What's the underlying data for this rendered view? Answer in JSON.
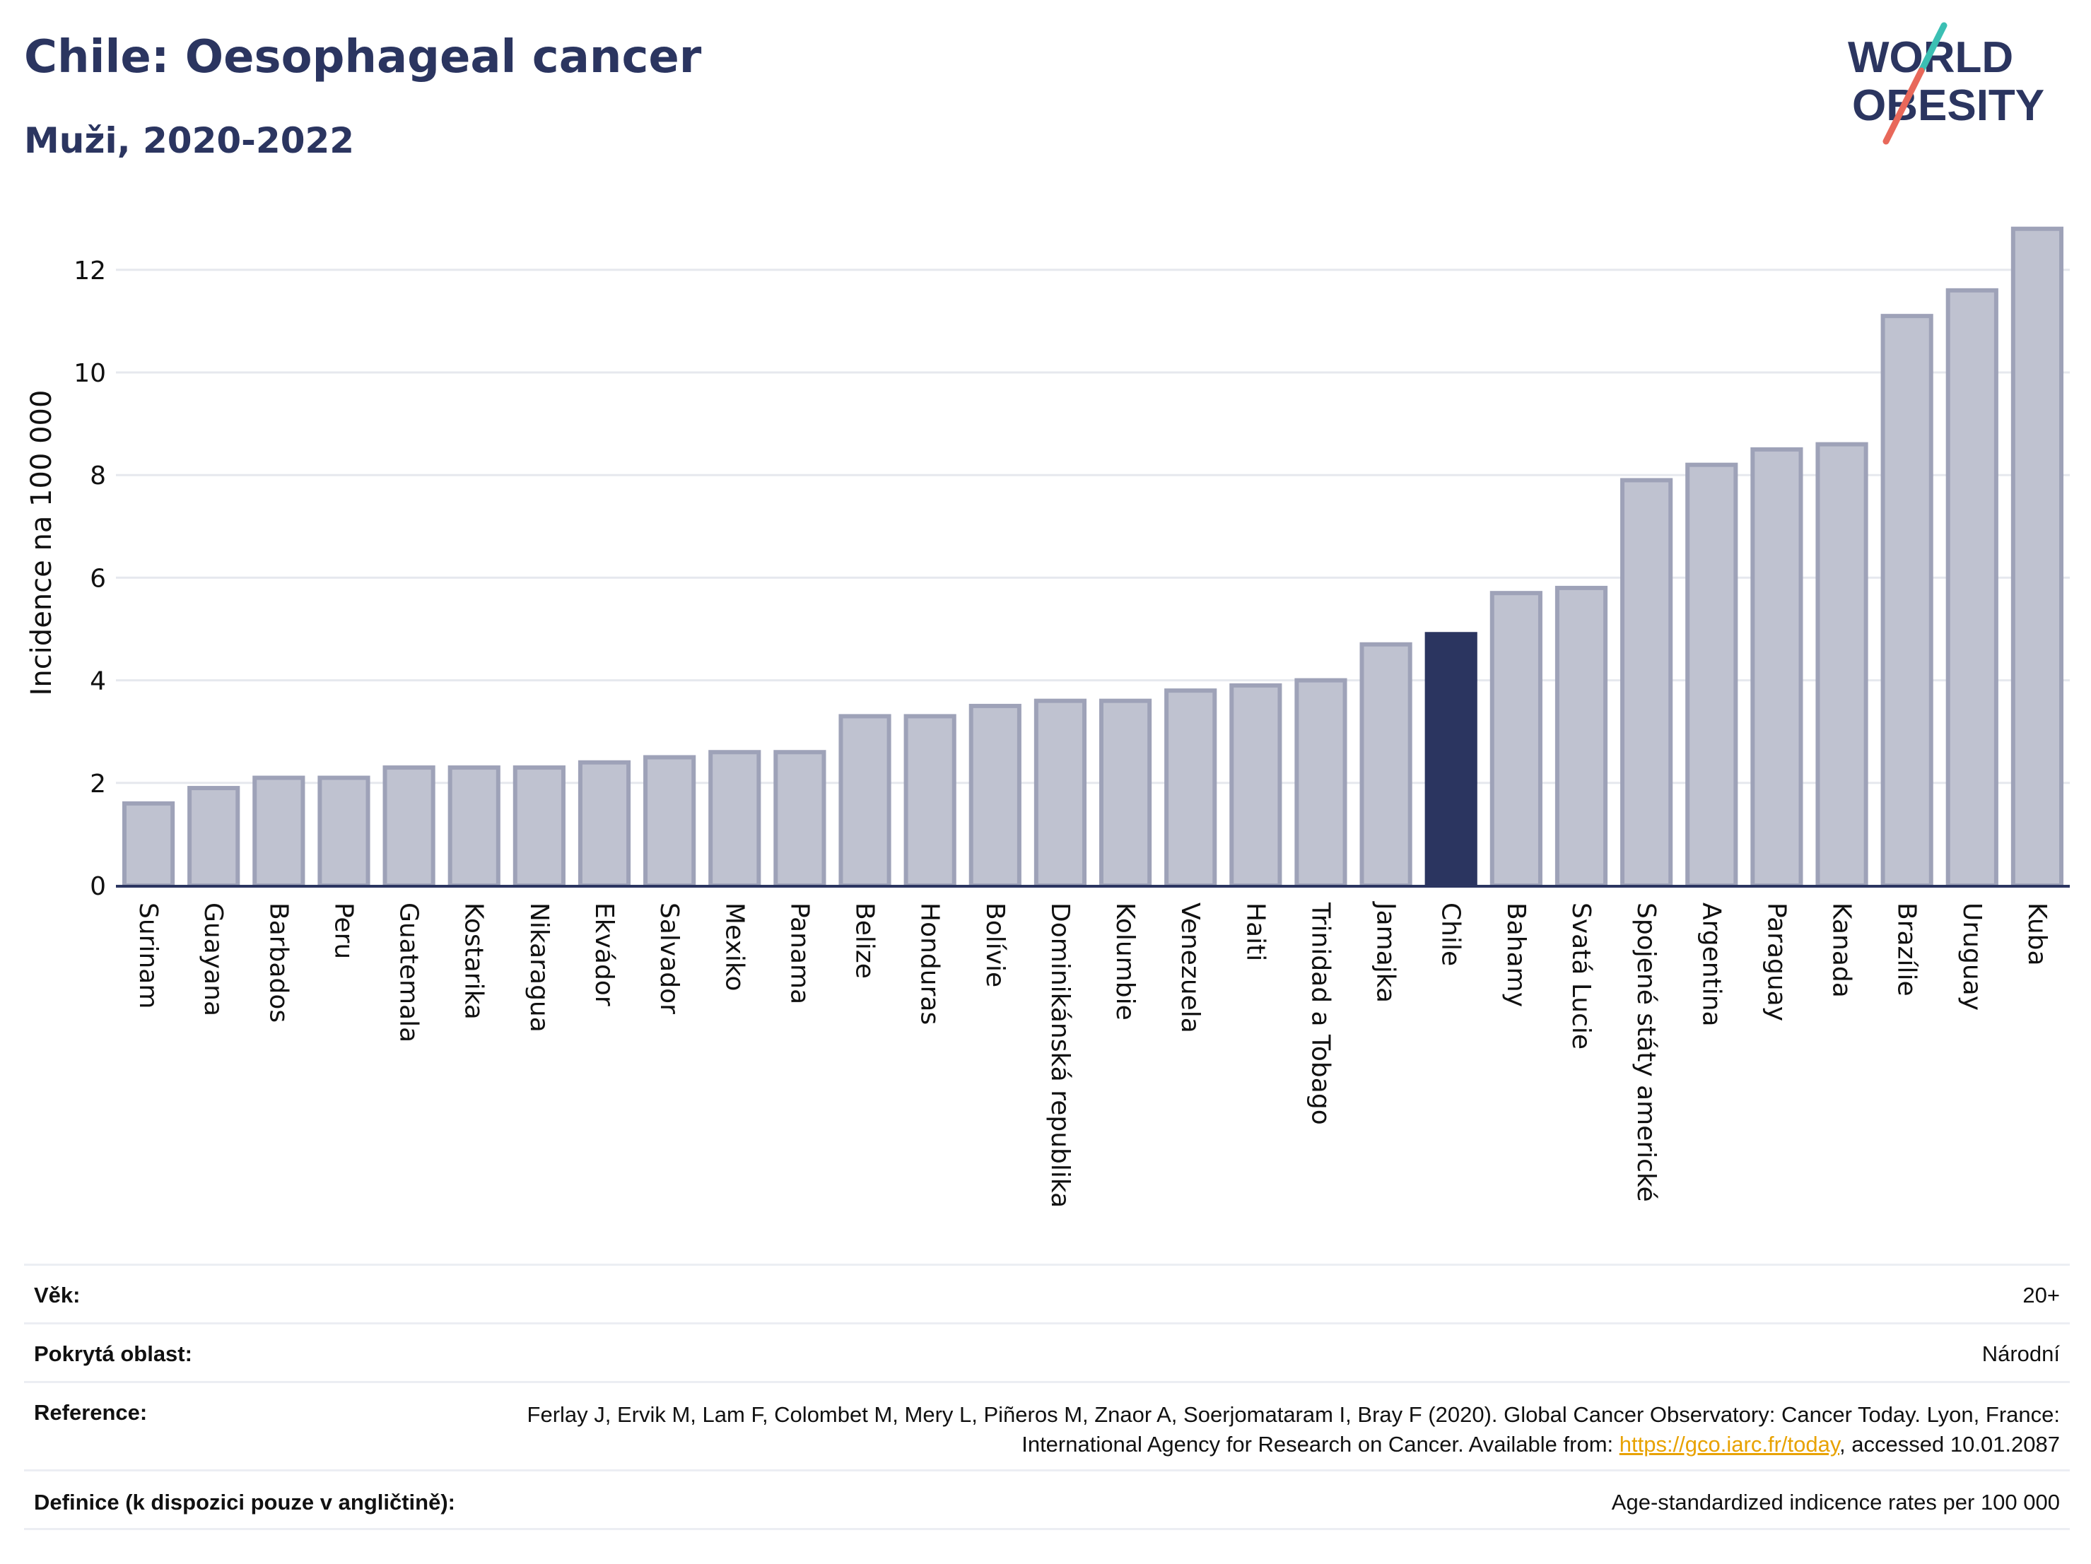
{
  "header": {
    "title": "Chile: Oesophageal cancer",
    "subtitle": "Muži, 2020-2022",
    "logo_line1": "WORLD",
    "logo_line2": "OBESITY"
  },
  "colors": {
    "bar": "#bfc2d0",
    "bar_border": "#9ea2b8",
    "highlight": "#2b3560",
    "grid": "#e6e8ee",
    "logo_text": "#2b3560",
    "logo_teal": "#3bbfb3",
    "logo_coral": "#e8685a"
  },
  "chart_data": {
    "type": "bar",
    "title": "Chile: Oesophageal cancer",
    "subtitle": "Muži, 2020-2022",
    "ylabel": "Incidence na 100 000",
    "xlabel": "",
    "ylim": [
      0,
      13
    ],
    "yticks": [
      0,
      2,
      4,
      6,
      8,
      10,
      12
    ],
    "grid": true,
    "highlight": "Chile",
    "categories": [
      "Surinam",
      "Guayana",
      "Barbados",
      "Peru",
      "Guatemala",
      "Kostarika",
      "Nikaragua",
      "Ekvádor",
      "Salvador",
      "Mexiko",
      "Panama",
      "Belize",
      "Honduras",
      "Bolívie",
      "Dominikánská republika",
      "Kolumbie",
      "Venezuela",
      "Haiti",
      "Trinidad a Tobago",
      "Jamajka",
      "Chile",
      "Bahamy",
      "Svatá Lucie",
      "Spojené státy americké",
      "Argentina",
      "Paraguay",
      "Kanada",
      "Brazílie",
      "Uruguay",
      "Kuba"
    ],
    "values": [
      1.6,
      1.9,
      2.1,
      2.1,
      2.3,
      2.3,
      2.3,
      2.4,
      2.5,
      2.6,
      2.6,
      3.3,
      3.3,
      3.5,
      3.6,
      3.6,
      3.8,
      3.9,
      4.0,
      4.7,
      4.9,
      5.7,
      5.8,
      7.9,
      8.2,
      8.5,
      8.6,
      11.1,
      11.6,
      12.8
    ]
  },
  "info": {
    "age_label": "Věk:",
    "age_value": "20+",
    "area_label": "Pokrytá oblast:",
    "area_value": "Národní",
    "reference_label": "Reference:",
    "reference_text_1": "Ferlay J, Ervik M, Lam F, Colombet M, Mery L, Piñeros M, Znaor A, Soerjomataram I, Bray F (2020). Global Cancer Observatory: Cancer Today. Lyon, France: International Agency for Research on Cancer. Available from: ",
    "reference_link": "https://gco.iarc.fr/today",
    "reference_text_2": ", accessed 10.01.2087",
    "definition_label": "Definice (k dispozici pouze v angličtině):",
    "definition_value": "Age-standardized indicence rates per 100 000"
  }
}
